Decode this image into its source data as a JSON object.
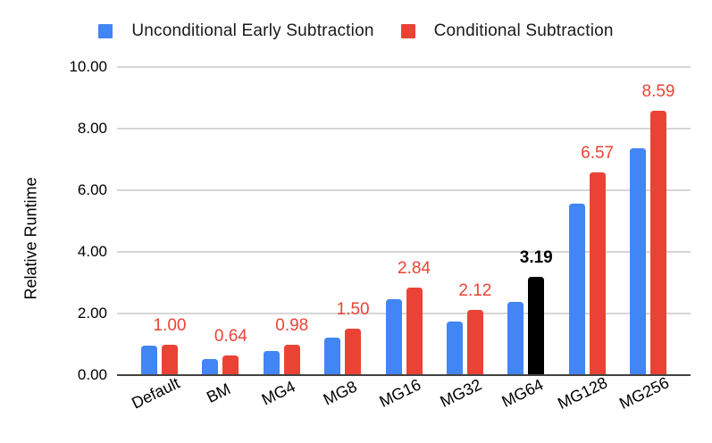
{
  "legend": {
    "items": [
      {
        "label": "Unconditional Early Subtraction",
        "color": "#4285F4"
      },
      {
        "label": "Conditional Subtraction",
        "color": "#EA4335"
      }
    ]
  },
  "chart_data": {
    "type": "bar",
    "title": "",
    "xlabel": "",
    "ylabel": "Relative Runtime",
    "ylim": [
      0,
      10
    ],
    "grid": true,
    "legend_position": "top",
    "yticks": [
      0,
      2,
      4,
      6,
      8,
      10
    ],
    "ytick_labels": [
      "0.00",
      "2.00",
      "4.00",
      "6.00",
      "8.00",
      "10.00"
    ],
    "categories": [
      "Default",
      "BM",
      "MG4",
      "MG8",
      "MG16",
      "MG32",
      "MG64",
      "MG128",
      "MG256"
    ],
    "series": [
      {
        "name": "Unconditional Early Subtraction",
        "color": "#4285F4",
        "values": [
          0.97,
          0.52,
          0.79,
          1.22,
          2.45,
          1.74,
          2.38,
          5.57,
          7.36
        ]
      },
      {
        "name": "Conditional Subtraction",
        "color": "#EA4335",
        "values": [
          1.0,
          0.64,
          0.98,
          1.5,
          2.84,
          2.12,
          3.19,
          6.57,
          8.59
        ],
        "data_labels": [
          "1.00",
          "0.64",
          "0.98",
          "1.50",
          "2.84",
          "2.12",
          "3.19",
          "6.57",
          "8.59"
        ],
        "label_color": "#EA4335",
        "overrides": [
          {
            "index": 6,
            "bar_color": "#000000",
            "label_color": "#000000",
            "label_bold": true
          }
        ]
      }
    ],
    "style": {
      "gridline_color": "#d6d6d6",
      "axis_line_color": "#424242",
      "background": "#ffffff"
    }
  }
}
